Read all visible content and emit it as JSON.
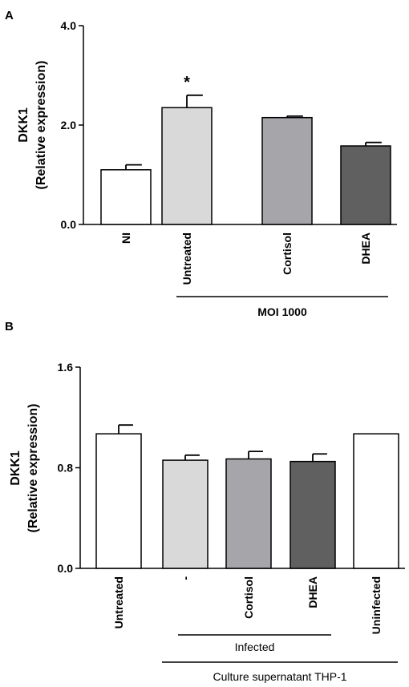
{
  "chart_data": [
    {
      "panel": "A",
      "type": "bar",
      "ylabel_line1": "DKK1",
      "ylabel_line2": "(Relative expression)",
      "ylim": [
        0,
        4.0
      ],
      "yticks": [
        "0.0",
        "2.0",
        "4.0"
      ],
      "ytick_values": [
        0,
        2.0,
        4.0
      ],
      "categories": [
        "NI",
        "Untreated",
        "Cortisol",
        "DHEA"
      ],
      "values": [
        1.1,
        2.35,
        2.15,
        1.58
      ],
      "errors": [
        0.1,
        0.25,
        0.03,
        0.07
      ],
      "colors": [
        "#ffffff",
        "#d9d9d9",
        "#a6a6aa",
        "#606060"
      ],
      "annotations": [
        {
          "category_index": 1,
          "text": "*"
        }
      ],
      "groups": [
        {
          "label": "MOI 1000",
          "from": 1,
          "to": 3
        }
      ]
    },
    {
      "panel": "B",
      "type": "bar",
      "ylabel_line1": "DKK1",
      "ylabel_line2": "(Relative expression)",
      "ylim": [
        0,
        1.6
      ],
      "yticks": [
        "0.0",
        "0.8",
        "1.6"
      ],
      "ytick_values": [
        0,
        0.8,
        1.6
      ],
      "categories": [
        "Untreated",
        "-",
        "Cortisol",
        "DHEA",
        "Uninfected"
      ],
      "values": [
        1.07,
        0.86,
        0.87,
        0.85,
        1.07
      ],
      "errors": [
        0.07,
        0.04,
        0.06,
        0.06,
        0.0
      ],
      "colors": [
        "#ffffff",
        "#d9d9d9",
        "#a6a6aa",
        "#606060",
        "#ffffff"
      ],
      "annotations": [],
      "groups": [
        {
          "label": "Infected",
          "from": 1,
          "to": 3
        },
        {
          "label": "Culture supernatant THP-1",
          "from": 0,
          "to": 4
        }
      ]
    }
  ]
}
